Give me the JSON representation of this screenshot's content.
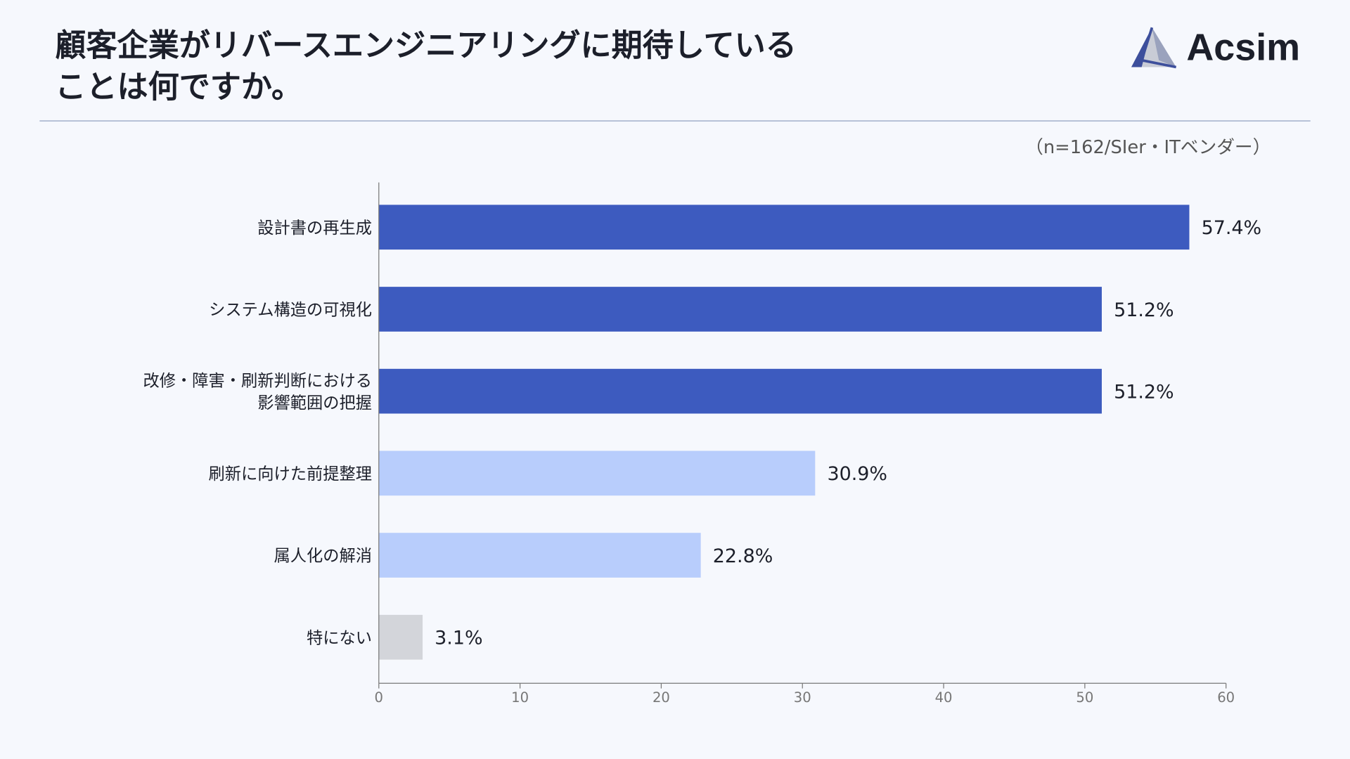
{
  "title": "顧客企業がリバースエンジニアリングに期待している\nことは何ですか。",
  "logo": {
    "text": "Acsim"
  },
  "note": "（n=162/SIer・ITベンダー）",
  "chart_data": {
    "type": "bar",
    "orientation": "horizontal",
    "categories": [
      "設計書の再生成",
      "システム構造の可視化",
      "改修・障害・刷新判断における\n影響範囲の把握",
      "刷新に向けた前提整理",
      "属人化の解消",
      "特にない"
    ],
    "values": [
      57.4,
      51.2,
      51.2,
      30.9,
      22.8,
      3.1
    ],
    "data_labels": [
      "57.4%",
      "51.2%",
      "51.2%",
      "30.9%",
      "22.8%",
      "3.1%"
    ],
    "colors": [
      "#3d5bbf",
      "#3d5bbf",
      "#3d5bbf",
      "#b8cdfc",
      "#b8cdfc",
      "#d3d5da"
    ],
    "xlim": [
      0,
      60
    ],
    "xticks": [
      0,
      10,
      20,
      30,
      40,
      50,
      60
    ],
    "grid": false,
    "xlabel": "",
    "ylabel": ""
  }
}
